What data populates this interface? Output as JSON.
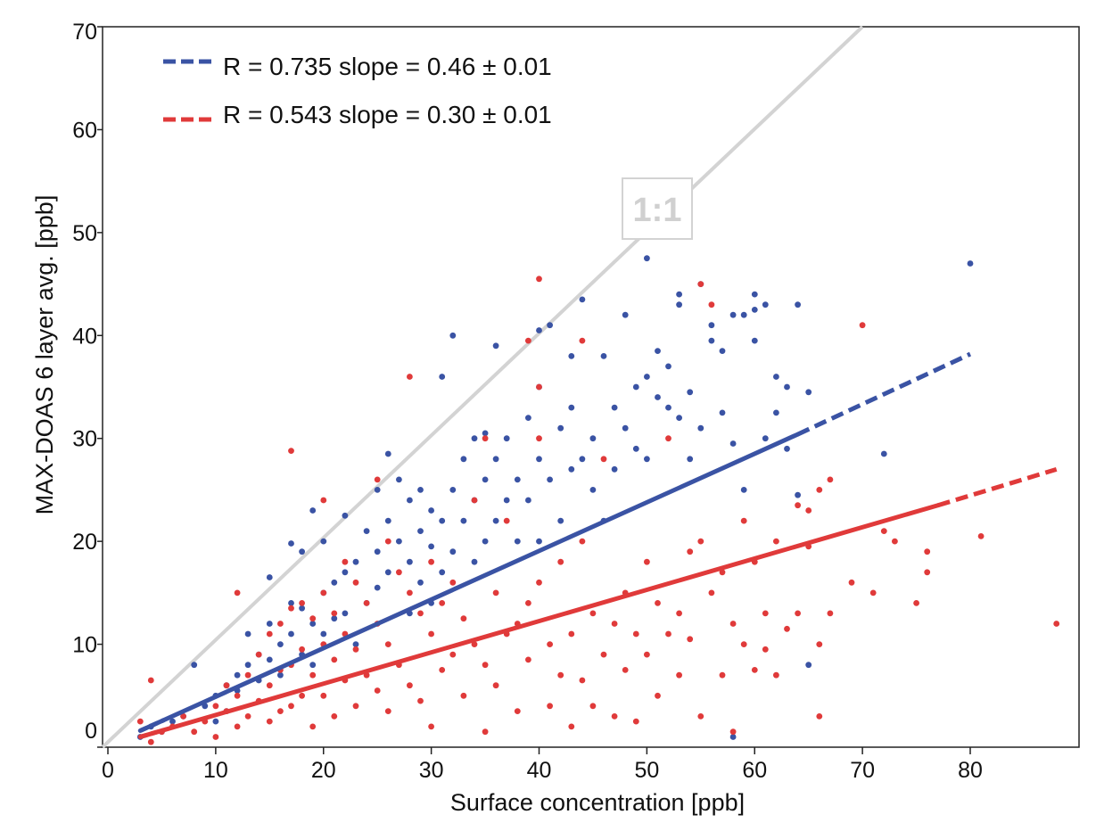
{
  "chart_data": {
    "type": "scatter",
    "xlabel": "Surface concentration [ppb]",
    "ylabel": "MAX-DOAS  6 layer avg. [ppb]",
    "xlim": [
      0,
      90
    ],
    "ylim": [
      0,
      70
    ],
    "x_ticks": [
      "0",
      "10",
      "20",
      "30",
      "40",
      "50",
      "60",
      "70",
      "80"
    ],
    "y_ticks": [
      "0",
      "10",
      "20",
      "30",
      "40",
      "50",
      "60",
      "70"
    ],
    "x_tick_values": [
      0,
      10,
      20,
      30,
      40,
      50,
      60,
      70,
      80
    ],
    "y_tick_values": [
      0,
      10,
      20,
      30,
      40,
      50,
      60,
      70
    ],
    "grid": false,
    "legend_position": "top-left",
    "reference_line": {
      "label": "1:1",
      "slope": 1,
      "color": "#d3d3d3"
    },
    "series": [
      {
        "name": "R = 0.735 slope = 0.46 ± 0.01",
        "color": "#3a53a4",
        "fit": {
          "x0": 3,
          "y0": 1.6,
          "x_solid_end": 64,
          "y_solid_end": 30.4,
          "x1": 80,
          "y1": 38.2
        },
        "points": [
          [
            3,
            1.0
          ],
          [
            4,
            2.0
          ],
          [
            5,
            1.5
          ],
          [
            6,
            2.5
          ],
          [
            7,
            3.0
          ],
          [
            8,
            8.0
          ],
          [
            9,
            4.0
          ],
          [
            10,
            5.0
          ],
          [
            10,
            2.5
          ],
          [
            11,
            6.0
          ],
          [
            11,
            3.5
          ],
          [
            12,
            7.0
          ],
          [
            12,
            5.5
          ],
          [
            13,
            11.0
          ],
          [
            13,
            8.0
          ],
          [
            14,
            6.5
          ],
          [
            14,
            9.0
          ],
          [
            15,
            16.5
          ],
          [
            15,
            12.0
          ],
          [
            15,
            8.5
          ],
          [
            16,
            10.0
          ],
          [
            16,
            7.0
          ],
          [
            17,
            14.0
          ],
          [
            17,
            11.0
          ],
          [
            17,
            19.8
          ],
          [
            18,
            9.0
          ],
          [
            18,
            13.5
          ],
          [
            18,
            19.0
          ],
          [
            19,
            12.0
          ],
          [
            19,
            8.0
          ],
          [
            19,
            23.0
          ],
          [
            20,
            15.0
          ],
          [
            20,
            11.0
          ],
          [
            20,
            20.0
          ],
          [
            21,
            16.0
          ],
          [
            21,
            12.5
          ],
          [
            22,
            22.5
          ],
          [
            22,
            13.0
          ],
          [
            22,
            17.0
          ],
          [
            23,
            18.0
          ],
          [
            23,
            10.0
          ],
          [
            24,
            21.0
          ],
          [
            24,
            14.0
          ],
          [
            25,
            19.0
          ],
          [
            25,
            25.0
          ],
          [
            25,
            15.5
          ],
          [
            26,
            28.5
          ],
          [
            26,
            22.0
          ],
          [
            26,
            17.0
          ],
          [
            27,
            26.0
          ],
          [
            27,
            20.0
          ],
          [
            28,
            24.0
          ],
          [
            28,
            18.0
          ],
          [
            28,
            13.0
          ],
          [
            29,
            25.0
          ],
          [
            29,
            21.0
          ],
          [
            29,
            16.0
          ],
          [
            30,
            23.0
          ],
          [
            30,
            19.5
          ],
          [
            30,
            14.0
          ],
          [
            31,
            36.0
          ],
          [
            31,
            22.0
          ],
          [
            31,
            17.0
          ],
          [
            32,
            40.0
          ],
          [
            32,
            25.0
          ],
          [
            32,
            19.0
          ],
          [
            33,
            28.0
          ],
          [
            33,
            22.0
          ],
          [
            34,
            30.0
          ],
          [
            34,
            24.0
          ],
          [
            34,
            18.0
          ],
          [
            35,
            30.5
          ],
          [
            35,
            26.0
          ],
          [
            35,
            20.0
          ],
          [
            36,
            39.0
          ],
          [
            36,
            28.0
          ],
          [
            36,
            22.0
          ],
          [
            37,
            30.0
          ],
          [
            37,
            24.0
          ],
          [
            38,
            26.0
          ],
          [
            38,
            20.0
          ],
          [
            39,
            32.0
          ],
          [
            39,
            24.0
          ],
          [
            40,
            35.0
          ],
          [
            40,
            40.5
          ],
          [
            40,
            28.0
          ],
          [
            40,
            20.0
          ],
          [
            41,
            41.0
          ],
          [
            41,
            26.0
          ],
          [
            42,
            31.0
          ],
          [
            42,
            22.0
          ],
          [
            43,
            38.0
          ],
          [
            43,
            33.0
          ],
          [
            43,
            27.0
          ],
          [
            44,
            43.5
          ],
          [
            44,
            28.0
          ],
          [
            45,
            30.0
          ],
          [
            45,
            25.0
          ],
          [
            46,
            38.0
          ],
          [
            46,
            22.0
          ],
          [
            47,
            33.0
          ],
          [
            47,
            27.0
          ],
          [
            48,
            42.0
          ],
          [
            48,
            31.0
          ],
          [
            49,
            35.0
          ],
          [
            49,
            29.0
          ],
          [
            50,
            47.5
          ],
          [
            50,
            36.0
          ],
          [
            50,
            28.0
          ],
          [
            51,
            38.5
          ],
          [
            51,
            34.0
          ],
          [
            52,
            37.0
          ],
          [
            52,
            33.0
          ],
          [
            53,
            44.0
          ],
          [
            53,
            43.0
          ],
          [
            53,
            32.0
          ],
          [
            54,
            34.5
          ],
          [
            54,
            28.0
          ],
          [
            55,
            45.0
          ],
          [
            55,
            31.0
          ],
          [
            56,
            41.0
          ],
          [
            56,
            39.5
          ],
          [
            57,
            38.5
          ],
          [
            57,
            32.5
          ],
          [
            58,
            42.0
          ],
          [
            58,
            29.5
          ],
          [
            58,
            1.0
          ],
          [
            59,
            42.0
          ],
          [
            59,
            25.0
          ],
          [
            60,
            44.0
          ],
          [
            60,
            42.5
          ],
          [
            60,
            39.5
          ],
          [
            61,
            43.0
          ],
          [
            61,
            30.0
          ],
          [
            62,
            36.0
          ],
          [
            62,
            32.5
          ],
          [
            63,
            35.0
          ],
          [
            63,
            29.0
          ],
          [
            64,
            43.0
          ],
          [
            64,
            24.5
          ],
          [
            65,
            34.5
          ],
          [
            65,
            8.0
          ],
          [
            72,
            28.5
          ],
          [
            80,
            47.0
          ]
        ]
      },
      {
        "name": "R = 0.543 slope = 0.30 ± 0.01",
        "color": "#e03a3a",
        "fit": {
          "x0": 3,
          "y0": 1.0,
          "x_solid_end": 77,
          "y_solid_end": 23.5,
          "x1": 88,
          "y1": 27.0
        },
        "points": [
          [
            3,
            2.5
          ],
          [
            4,
            6.5
          ],
          [
            4,
            0.5
          ],
          [
            5,
            1.5
          ],
          [
            6,
            2.0
          ],
          [
            7,
            3.0
          ],
          [
            8,
            1.5
          ],
          [
            9,
            2.5
          ],
          [
            10,
            4.0
          ],
          [
            10,
            1.0
          ],
          [
            11,
            3.5
          ],
          [
            11,
            6.0
          ],
          [
            12,
            15.0
          ],
          [
            12,
            5.0
          ],
          [
            12,
            2.0
          ],
          [
            13,
            7.0
          ],
          [
            13,
            3.0
          ],
          [
            14,
            9.0
          ],
          [
            14,
            4.5
          ],
          [
            15,
            11.0
          ],
          [
            15,
            6.0
          ],
          [
            15,
            2.5
          ],
          [
            16,
            12.0
          ],
          [
            16,
            7.5
          ],
          [
            16,
            3.5
          ],
          [
            17,
            28.8
          ],
          [
            17,
            13.5
          ],
          [
            17,
            8.0
          ],
          [
            17,
            4.0
          ],
          [
            18,
            14.0
          ],
          [
            18,
            9.5
          ],
          [
            18,
            5.0
          ],
          [
            19,
            12.5
          ],
          [
            19,
            7.0
          ],
          [
            19,
            2.0
          ],
          [
            20,
            24.0
          ],
          [
            20,
            15.0
          ],
          [
            20,
            10.0
          ],
          [
            20,
            5.0
          ],
          [
            21,
            13.0
          ],
          [
            21,
            8.5
          ],
          [
            21,
            3.0
          ],
          [
            22,
            18.0
          ],
          [
            22,
            11.0
          ],
          [
            22,
            6.5
          ],
          [
            23,
            16.0
          ],
          [
            23,
            9.5
          ],
          [
            23,
            4.0
          ],
          [
            24,
            14.0
          ],
          [
            24,
            7.0
          ],
          [
            25,
            26.0
          ],
          [
            25,
            12.0
          ],
          [
            25,
            5.5
          ],
          [
            26,
            20.0
          ],
          [
            26,
            10.0
          ],
          [
            26,
            3.5
          ],
          [
            27,
            17.0
          ],
          [
            27,
            8.0
          ],
          [
            28,
            36.0
          ],
          [
            28,
            15.0
          ],
          [
            28,
            6.0
          ],
          [
            29,
            13.0
          ],
          [
            29,
            4.5
          ],
          [
            30,
            18.0
          ],
          [
            30,
            11.0
          ],
          [
            30,
            2.0
          ],
          [
            31,
            14.0
          ],
          [
            31,
            7.5
          ],
          [
            32,
            16.0
          ],
          [
            32,
            9.0
          ],
          [
            33,
            12.5
          ],
          [
            33,
            5.0
          ],
          [
            34,
            24.0
          ],
          [
            34,
            10.0
          ],
          [
            35,
            30.0
          ],
          [
            35,
            8.0
          ],
          [
            35,
            1.5
          ],
          [
            36,
            15.0
          ],
          [
            36,
            6.0
          ],
          [
            37,
            22.0
          ],
          [
            37,
            11.0
          ],
          [
            38,
            12.0
          ],
          [
            38,
            3.5
          ],
          [
            39,
            39.5
          ],
          [
            39,
            14.0
          ],
          [
            39,
            8.5
          ],
          [
            40,
            45.5
          ],
          [
            40,
            35.0
          ],
          [
            40,
            30.0
          ],
          [
            40,
            16.0
          ],
          [
            41,
            10.0
          ],
          [
            41,
            4.0
          ],
          [
            42,
            18.0
          ],
          [
            42,
            7.0
          ],
          [
            43,
            11.0
          ],
          [
            43,
            2.0
          ],
          [
            44,
            39.5
          ],
          [
            44,
            20.0
          ],
          [
            44,
            6.5
          ],
          [
            45,
            13.0
          ],
          [
            45,
            4.0
          ],
          [
            46,
            28.0
          ],
          [
            46,
            9.0
          ],
          [
            47,
            12.0
          ],
          [
            47,
            3.0
          ],
          [
            48,
            15.0
          ],
          [
            48,
            7.5
          ],
          [
            49,
            11.0
          ],
          [
            49,
            2.5
          ],
          [
            50,
            18.0
          ],
          [
            50,
            9.0
          ],
          [
            51,
            14.0
          ],
          [
            51,
            5.0
          ],
          [
            52,
            30.0
          ],
          [
            52,
            11.0
          ],
          [
            53,
            13.0
          ],
          [
            53,
            7.0
          ],
          [
            54,
            19.0
          ],
          [
            54,
            10.5
          ],
          [
            55,
            45.0
          ],
          [
            55,
            20.0
          ],
          [
            55,
            3.0
          ],
          [
            56,
            43.0
          ],
          [
            56,
            15.0
          ],
          [
            57,
            17.0
          ],
          [
            57,
            7.0
          ],
          [
            58,
            12.0
          ],
          [
            58,
            1.5
          ],
          [
            59,
            22.0
          ],
          [
            59,
            10.0
          ],
          [
            60,
            18.0
          ],
          [
            60,
            7.5
          ],
          [
            61,
            13.0
          ],
          [
            61,
            9.5
          ],
          [
            62,
            20.0
          ],
          [
            62,
            7.0
          ],
          [
            63,
            11.5
          ],
          [
            64,
            23.5
          ],
          [
            64,
            13.0
          ],
          [
            65,
            19.5
          ],
          [
            65,
            23.0
          ],
          [
            66,
            25.0
          ],
          [
            66,
            10.0
          ],
          [
            66,
            3.0
          ],
          [
            67,
            26.0
          ],
          [
            67,
            13.0
          ],
          [
            69,
            16.0
          ],
          [
            70,
            41.0
          ],
          [
            71,
            15.0
          ],
          [
            72,
            21.0
          ],
          [
            73,
            20.0
          ],
          [
            75,
            14.0
          ],
          [
            76,
            19.0
          ],
          [
            76,
            17.0
          ],
          [
            81,
            20.5
          ],
          [
            88,
            12.0
          ]
        ]
      }
    ]
  }
}
